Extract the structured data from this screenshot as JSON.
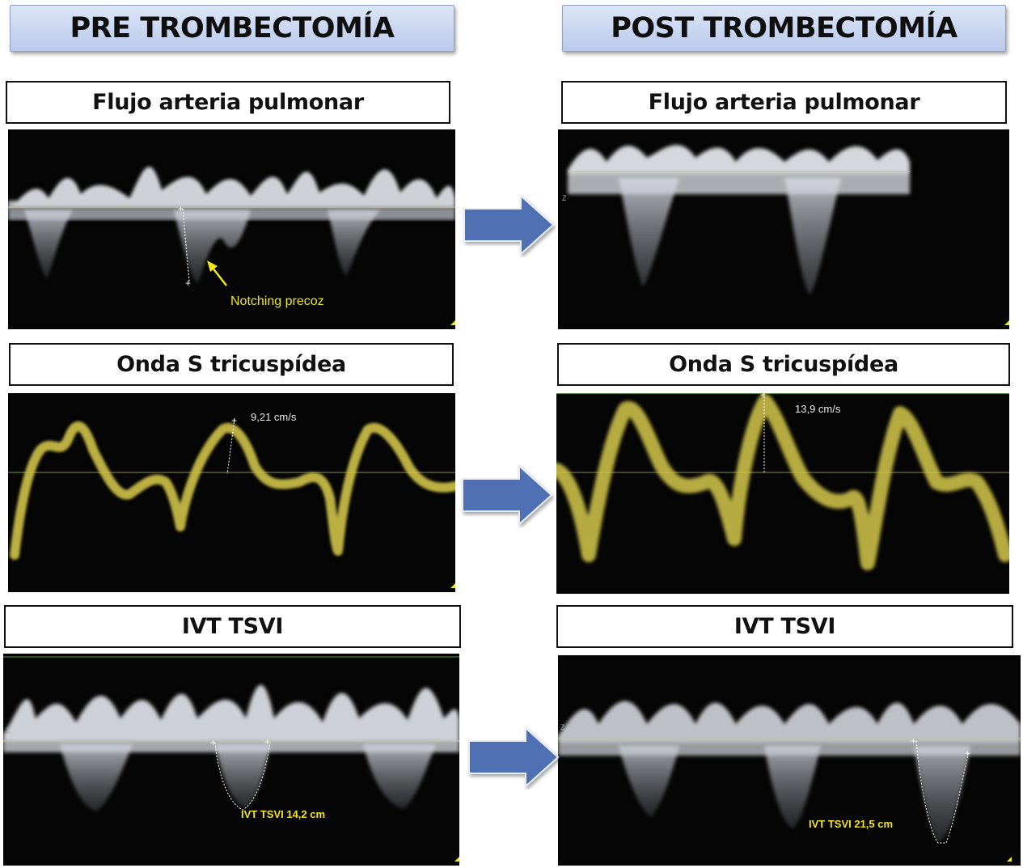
{
  "headers": {
    "pre": "PRE TROMBECTOMÍA",
    "post": "POST TROMBECTOMÍA"
  },
  "labels": {
    "row1_pre": "Flujo arteria pulmonar",
    "row1_post": "Flujo arteria pulmonar",
    "row2_pre": "Onda S tricuspídea",
    "row2_post": "Onda S tricuspídea",
    "row3_pre": "IVT TSVI",
    "row3_post": "IVT TSVI"
  },
  "annotations": {
    "notching": "Notching precoz",
    "s_wave_pre": "9,21 cm/s",
    "s_wave_post": "13,9 cm/s",
    "ivt_pre": "IVT TSVI 14,2 cm",
    "ivt_post": "IVT TSVI 21,5 cm"
  },
  "colors": {
    "header_fill": "#c9d6f0",
    "arrow": "#4f6fb2",
    "doppler_gray": "#e8e8f0",
    "tissue_yellow": "#cfc24a",
    "annotation_yellow": "#f2e61b"
  },
  "icons": {
    "arrow": "right-arrow-icon"
  }
}
